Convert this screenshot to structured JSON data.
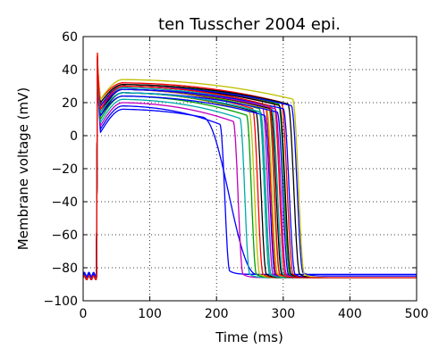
{
  "chart_data": {
    "type": "line",
    "title": "ten Tusscher 2004 epi.",
    "xlabel": "Time (ms)",
    "ylabel": "Membrane voltage (mV)",
    "xlim": [
      0,
      500
    ],
    "ylim": [
      -100,
      60
    ],
    "xticks": [
      0,
      100,
      200,
      300,
      400,
      500
    ],
    "yticks": [
      -100,
      -80,
      -60,
      -40,
      -20,
      0,
      20,
      40,
      60
    ],
    "xtick_labels": [
      "0",
      "100",
      "200",
      "300",
      "400",
      "500"
    ],
    "ytick_labels": [
      "−100",
      "−80",
      "−60",
      "−40",
      "−20",
      "0",
      "20",
      "40",
      "60"
    ],
    "grid": true,
    "legend": "none",
    "stimulus_time_ms": 20,
    "traces": [
      {
        "color": "#0000ff",
        "rest": -84,
        "peak": 44,
        "notch": 4,
        "plateau": 14,
        "apd": 200,
        "fall": 15
      },
      {
        "color": "#0000ff",
        "rest": -86,
        "peak": 44,
        "notch": 2,
        "plateau": 12,
        "apd": 240,
        "fall": 80
      },
      {
        "color": "#c000c0",
        "rest": -86,
        "peak": 46,
        "notch": 6,
        "plateau": 16,
        "apd": 220,
        "fall": 15
      },
      {
        "color": "#00aaaa",
        "rest": -86,
        "peak": 46,
        "notch": 8,
        "plateau": 18,
        "apd": 230,
        "fall": 15
      },
      {
        "color": "#00a000",
        "rest": -86,
        "peak": 46,
        "notch": 10,
        "plateau": 20,
        "apd": 240,
        "fall": 15
      },
      {
        "color": "#bfbf00",
        "rest": -86,
        "peak": 46,
        "notch": 12,
        "plateau": 22,
        "apd": 245,
        "fall": 16
      },
      {
        "color": "#ff0000",
        "rest": -86,
        "peak": 48,
        "notch": 14,
        "plateau": 24,
        "apd": 250,
        "fall": 16
      },
      {
        "color": "#000000",
        "rest": -86,
        "peak": 46,
        "notch": 12,
        "plateau": 22,
        "apd": 255,
        "fall": 16
      },
      {
        "color": "#00a000",
        "rest": -86,
        "peak": 46,
        "notch": 16,
        "plateau": 24,
        "apd": 260,
        "fall": 16
      },
      {
        "color": "#00aaaa",
        "rest": -86,
        "peak": 46,
        "notch": 14,
        "plateau": 22,
        "apd": 262,
        "fall": 16
      },
      {
        "color": "#c000c0",
        "rest": -86,
        "peak": 48,
        "notch": 16,
        "plateau": 25,
        "apd": 265,
        "fall": 16
      },
      {
        "color": "#0000ff",
        "rest": -86,
        "peak": 46,
        "notch": 12,
        "plateau": 20,
        "apd": 268,
        "fall": 16
      },
      {
        "color": "#ff0000",
        "rest": -86,
        "peak": 48,
        "notch": 18,
        "plateau": 26,
        "apd": 270,
        "fall": 17
      },
      {
        "color": "#bfbf00",
        "rest": -86,
        "peak": 46,
        "notch": 16,
        "plateau": 24,
        "apd": 272,
        "fall": 17
      },
      {
        "color": "#00a000",
        "rest": -86,
        "peak": 46,
        "notch": 18,
        "plateau": 26,
        "apd": 275,
        "fall": 17
      },
      {
        "color": "#000000",
        "rest": -86,
        "peak": 46,
        "notch": 14,
        "plateau": 24,
        "apd": 278,
        "fall": 17
      },
      {
        "color": "#00aaaa",
        "rest": -86,
        "peak": 46,
        "notch": 18,
        "plateau": 25,
        "apd": 280,
        "fall": 17
      },
      {
        "color": "#ff0000",
        "rest": -86,
        "peak": 48,
        "notch": 20,
        "plateau": 27,
        "apd": 283,
        "fall": 17
      },
      {
        "color": "#c000c0",
        "rest": -86,
        "peak": 46,
        "notch": 16,
        "plateau": 24,
        "apd": 285,
        "fall": 17
      },
      {
        "color": "#0000ff",
        "rest": -86,
        "peak": 46,
        "notch": 14,
        "plateau": 22,
        "apd": 288,
        "fall": 17
      },
      {
        "color": "#00a000",
        "rest": -86,
        "peak": 46,
        "notch": 20,
        "plateau": 27,
        "apd": 290,
        "fall": 17
      },
      {
        "color": "#000000",
        "rest": -86,
        "peak": 46,
        "notch": 18,
        "plateau": 26,
        "apd": 292,
        "fall": 18
      },
      {
        "color": "#ff0000",
        "rest": -86,
        "peak": 48,
        "notch": 22,
        "plateau": 28,
        "apd": 295,
        "fall": 18
      },
      {
        "color": "#0000ff",
        "rest": -86,
        "peak": 46,
        "notch": 16,
        "plateau": 24,
        "apd": 298,
        "fall": 18
      },
      {
        "color": "#000000",
        "rest": -86,
        "peak": 46,
        "notch": 20,
        "plateau": 27,
        "apd": 305,
        "fall": 18
      },
      {
        "color": "#0000ff",
        "rest": -85,
        "peak": 46,
        "notch": 18,
        "plateau": 26,
        "apd": 310,
        "fall": 18
      },
      {
        "color": "#bfbf00",
        "rest": -86,
        "peak": 50,
        "notch": 22,
        "plateau": 30,
        "apd": 312,
        "fall": 18
      },
      {
        "color": "#00aaaa",
        "rest": -86,
        "peak": 45,
        "notch": 14,
        "plateau": 22,
        "apd": 260,
        "fall": 16
      },
      {
        "color": "#ff0000",
        "rest": -86,
        "peak": 50,
        "notch": 16,
        "plateau": 26,
        "apd": 275,
        "fall": 16
      }
    ]
  }
}
